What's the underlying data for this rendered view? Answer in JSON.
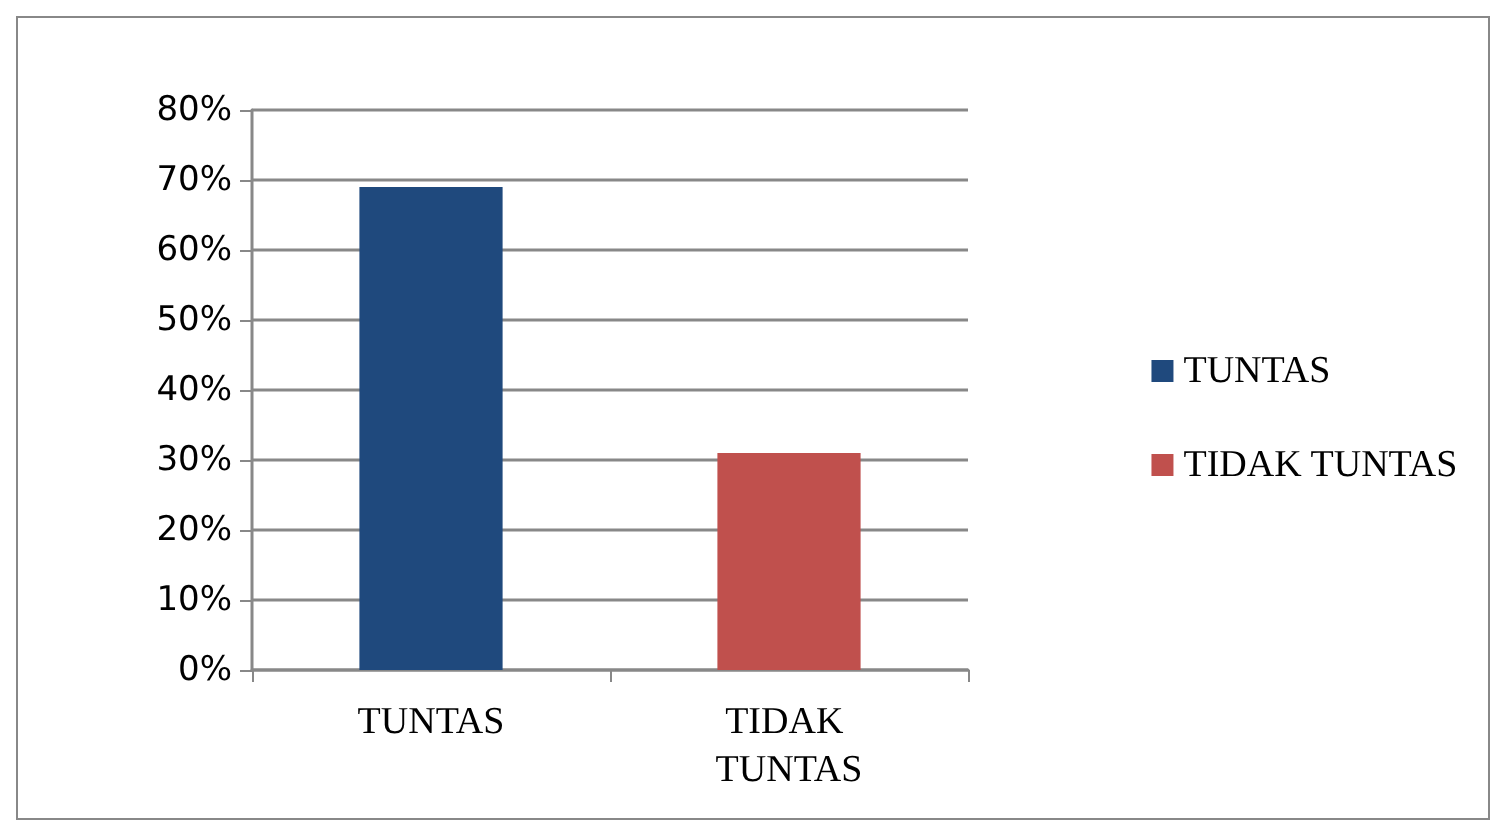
{
  "chart_data": {
    "type": "bar",
    "categories": [
      "TUNTAS",
      "TIDAK TUNTAS"
    ],
    "series": [
      {
        "name": "TUNTAS",
        "color": "#1f497d",
        "values": [
          69,
          null
        ]
      },
      {
        "name": "TIDAK TUNTAS",
        "color": "#c0504d",
        "values": [
          null,
          31
        ]
      }
    ],
    "ylim": [
      0,
      80
    ],
    "yticks": [
      {
        "value": 0,
        "label": "0%"
      },
      {
        "value": 10,
        "label": "10%"
      },
      {
        "value": 20,
        "label": "20%"
      },
      {
        "value": 30,
        "label": "30%"
      },
      {
        "value": 40,
        "label": "40%"
      },
      {
        "value": 50,
        "label": "50%"
      },
      {
        "value": 60,
        "label": "60%"
      },
      {
        "value": 70,
        "label": "70%"
      },
      {
        "value": 80,
        "label": "80%"
      }
    ],
    "grid": "y",
    "legend": "right"
  }
}
